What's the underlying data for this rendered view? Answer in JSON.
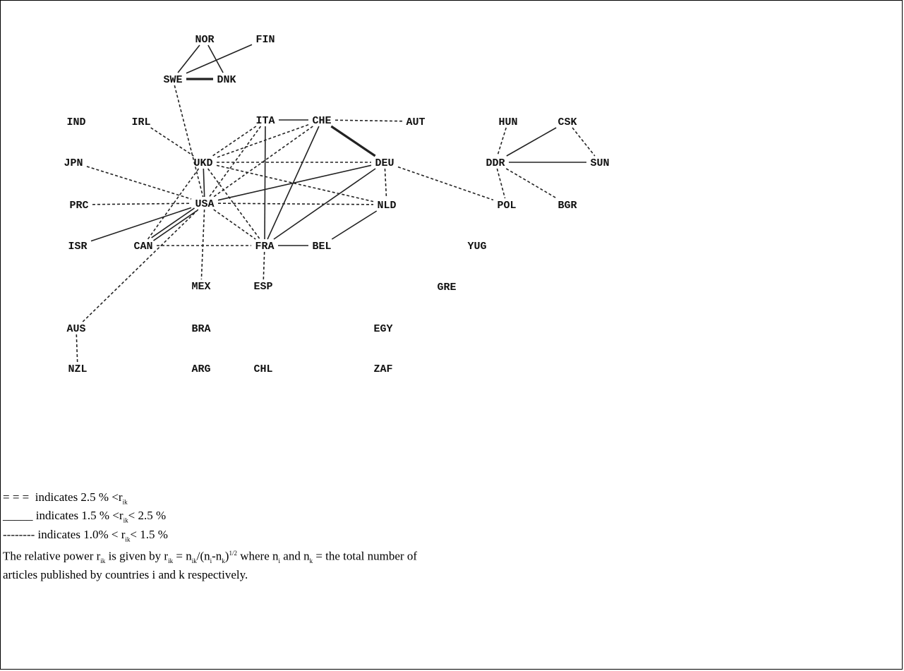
{
  "diagram": {
    "nodes": [
      {
        "id": "NOR",
        "label": "NOR"
      },
      {
        "id": "FIN",
        "label": "FIN"
      },
      {
        "id": "SWE",
        "label": "SWE"
      },
      {
        "id": "DNK",
        "label": "DNK"
      },
      {
        "id": "IND",
        "label": "IND"
      },
      {
        "id": "IRL",
        "label": "IRL"
      },
      {
        "id": "ITA",
        "label": "ITA"
      },
      {
        "id": "CHE",
        "label": "CHE"
      },
      {
        "id": "AUT",
        "label": "AUT"
      },
      {
        "id": "HUN",
        "label": "HUN"
      },
      {
        "id": "CSK",
        "label": "CSK"
      },
      {
        "id": "JPN",
        "label": "JPN"
      },
      {
        "id": "UKD",
        "label": "UKD"
      },
      {
        "id": "DEU",
        "label": "DEU"
      },
      {
        "id": "DDR",
        "label": "DDR"
      },
      {
        "id": "SUN",
        "label": "SUN"
      },
      {
        "id": "PRC",
        "label": "PRC"
      },
      {
        "id": "USA",
        "label": "USA"
      },
      {
        "id": "NLD",
        "label": "NLD"
      },
      {
        "id": "POL",
        "label": "POL"
      },
      {
        "id": "BGR",
        "label": "BGR"
      },
      {
        "id": "ISR",
        "label": "ISR"
      },
      {
        "id": "CAN",
        "label": "CAN"
      },
      {
        "id": "FRA",
        "label": "FRA"
      },
      {
        "id": "BEL",
        "label": "BEL"
      },
      {
        "id": "YUG",
        "label": "YUG"
      },
      {
        "id": "MEX",
        "label": "MEX"
      },
      {
        "id": "ESP",
        "label": "ESP"
      },
      {
        "id": "GRE",
        "label": "GRE"
      },
      {
        "id": "AUS",
        "label": "AUS"
      },
      {
        "id": "BRA",
        "label": "BRA"
      },
      {
        "id": "EGY",
        "label": "EGY"
      },
      {
        "id": "NZL",
        "label": "NZL"
      },
      {
        "id": "ARG",
        "label": "ARG"
      },
      {
        "id": "CHL",
        "label": "CHL"
      },
      {
        "id": "ZAF",
        "label": "ZAF"
      }
    ],
    "edges": [
      {
        "from": "NOR",
        "to": "SWE",
        "style": "solid"
      },
      {
        "from": "NOR",
        "to": "DNK",
        "style": "solid"
      },
      {
        "from": "FIN",
        "to": "SWE",
        "style": "solid"
      },
      {
        "from": "SWE",
        "to": "DNK",
        "style": "thick"
      },
      {
        "from": "SWE",
        "to": "USA",
        "style": "dashed"
      },
      {
        "from": "ITA",
        "to": "CHE",
        "style": "solid"
      },
      {
        "from": "CHE",
        "to": "AUT",
        "style": "dashed"
      },
      {
        "from": "CHE",
        "to": "DEU",
        "style": "thick"
      },
      {
        "from": "CHE",
        "to": "FRA",
        "style": "solid"
      },
      {
        "from": "CHE",
        "to": "UKD",
        "style": "dashed"
      },
      {
        "from": "CHE",
        "to": "USA",
        "style": "dashed"
      },
      {
        "from": "ITA",
        "to": "FRA",
        "style": "solid"
      },
      {
        "from": "ITA",
        "to": "UKD",
        "style": "dashed"
      },
      {
        "from": "ITA",
        "to": "USA",
        "style": "dashed"
      },
      {
        "from": "IRL",
        "to": "UKD",
        "style": "dashed"
      },
      {
        "from": "JPN",
        "to": "USA",
        "style": "dashed"
      },
      {
        "from": "UKD",
        "to": "DEU",
        "style": "dashed"
      },
      {
        "from": "UKD",
        "to": "NLD",
        "style": "dashed"
      },
      {
        "from": "UKD",
        "to": "USA",
        "style": "solid"
      },
      {
        "from": "UKD",
        "to": "FRA",
        "style": "dashed"
      },
      {
        "from": "UKD",
        "to": "CAN",
        "style": "dashed"
      },
      {
        "from": "DEU",
        "to": "USA",
        "style": "solid"
      },
      {
        "from": "DEU",
        "to": "FRA",
        "style": "solid"
      },
      {
        "from": "DEU",
        "to": "NLD",
        "style": "dashed"
      },
      {
        "from": "DEU",
        "to": "POL",
        "style": "dashed"
      },
      {
        "from": "PRC",
        "to": "USA",
        "style": "dashed"
      },
      {
        "from": "USA",
        "to": "NLD",
        "style": "dashed"
      },
      {
        "from": "USA",
        "to": "FRA",
        "style": "dashed"
      },
      {
        "from": "USA",
        "to": "CAN",
        "style": "double"
      },
      {
        "from": "USA",
        "to": "MEX",
        "style": "dashed"
      },
      {
        "from": "USA",
        "to": "ISR",
        "style": "solid"
      },
      {
        "from": "USA",
        "to": "AUS",
        "style": "dashed"
      },
      {
        "from": "CAN",
        "to": "FRA",
        "style": "dashed"
      },
      {
        "from": "FRA",
        "to": "BEL",
        "style": "solid"
      },
      {
        "from": "FRA",
        "to": "ESP",
        "style": "dashed"
      },
      {
        "from": "BEL",
        "to": "NLD",
        "style": "solid"
      },
      {
        "from": "HUN",
        "to": "DDR",
        "style": "dashed"
      },
      {
        "from": "CSK",
        "to": "DDR",
        "style": "solid"
      },
      {
        "from": "CSK",
        "to": "SUN",
        "style": "dashed"
      },
      {
        "from": "DDR",
        "to": "SUN",
        "style": "solid"
      },
      {
        "from": "DDR",
        "to": "POL",
        "style": "dashed"
      },
      {
        "from": "DDR",
        "to": "BGR",
        "style": "dashed"
      },
      {
        "from": "AUS",
        "to": "NZL",
        "style": "dashed"
      }
    ]
  },
  "legend": {
    "l1_prefix": "= = =  indicates 2.5 % <r",
    "l1_sub": "ik",
    "l2_prefix": "_____ indicates 1.5 % <r",
    "l2_sub": "ik",
    "l2_suffix": "< 2.5 %",
    "l3_prefix": "-------- indicates 1.0% < r",
    "l3_sub": "ik",
    "l3_suffix": "< 1.5 %",
    "p1": "The relative power r",
    "p1_sub": "ik",
    "p2": " is given by r",
    "p2_sub": "ik",
    "p3": " = n",
    "p3_sub": "ik",
    "p4": "/(n",
    "p4_sub": "i",
    "p5": "-n",
    "p5_sub": "k",
    "p6": ")",
    "p6_sup": "1/2",
    "p7": " where n",
    "p7_sub": "i",
    "p8": " and n",
    "p8_sub": "k",
    "p9": " = the total number of",
    "line5": "articles published by countries i and k respectively."
  }
}
